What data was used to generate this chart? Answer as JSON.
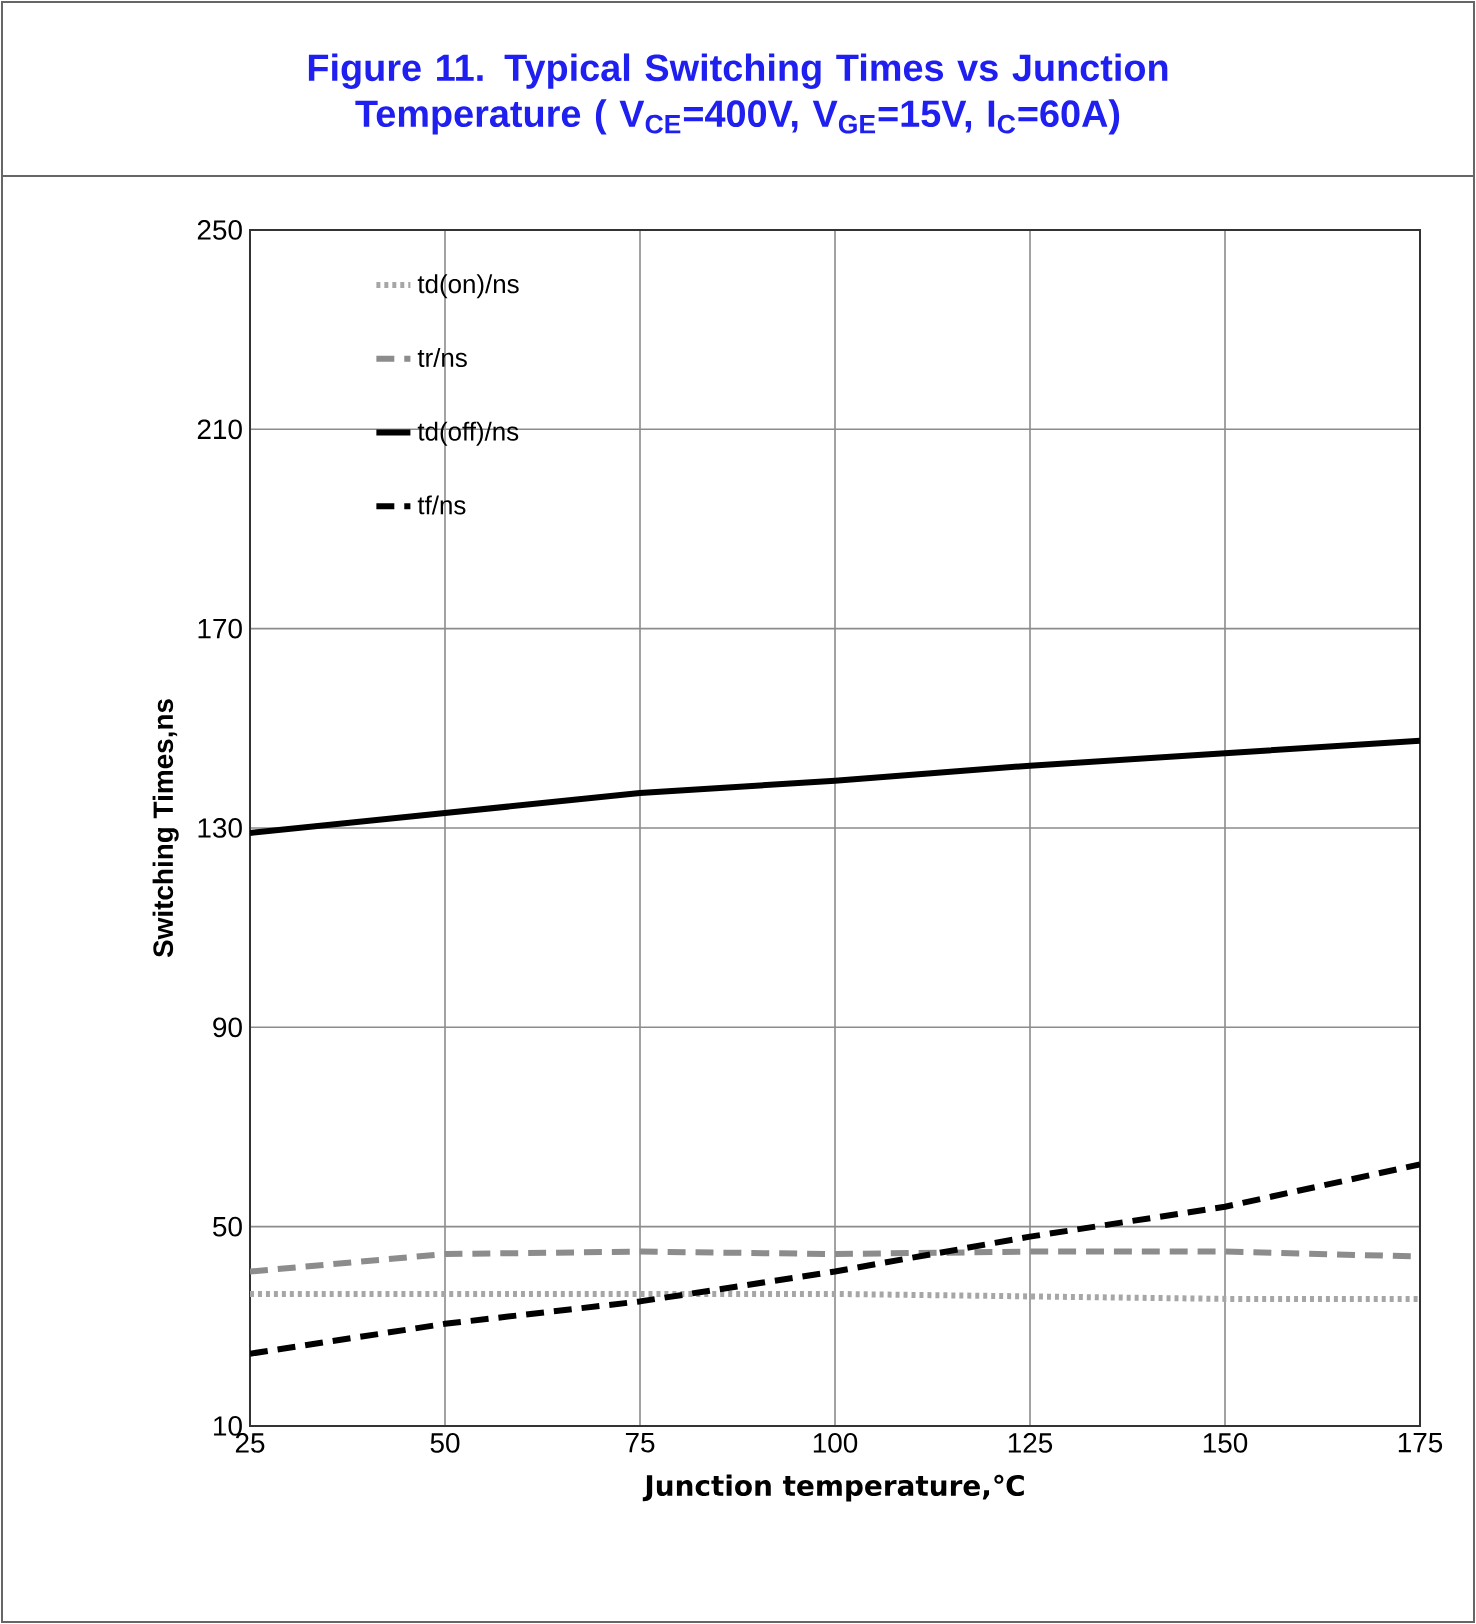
{
  "chart_data": {
    "type": "line",
    "title": "Figure 11. Typical Switching Times vs Junction Temperature ( V$_{CE}$=400V, V$_{GE}$=15V, I$_{C}$=60A)",
    "xlabel": "Junction temperature,℃",
    "ylabel": "Switching Times,ns",
    "x": [
      25,
      50,
      75,
      100,
      125,
      150,
      175
    ],
    "series": [
      {
        "name": "td(on)/ns",
        "color": "#a6a6a6",
        "line_style": "dotted",
        "values": [
          36.5,
          36.5,
          36.5,
          36.5,
          36,
          35.5,
          35.5
        ]
      },
      {
        "name": "tr/ns",
        "color": "#8c8c8c",
        "line_style": "dashed",
        "values": [
          41,
          44.5,
          45,
          44.5,
          45,
          45,
          44
        ]
      },
      {
        "name": "td(off)/ns",
        "color": "#000000",
        "line_style": "solid",
        "values": [
          129,
          133,
          137,
          139.5,
          142.5,
          145,
          147.5
        ]
      },
      {
        "name": "tf/ns",
        "color": "#000000",
        "line_style": "dashed",
        "values": [
          24.5,
          30.5,
          35,
          41,
          48,
          54,
          62.5
        ]
      }
    ],
    "xlim": [
      25,
      175
    ],
    "xticks": [
      25,
      50,
      75,
      100,
      125,
      150,
      175
    ],
    "ylim": [
      10,
      250
    ],
    "yticks": [
      10,
      50,
      90,
      130,
      170,
      210,
      250
    ],
    "grid": true,
    "legend": "top left"
  }
}
